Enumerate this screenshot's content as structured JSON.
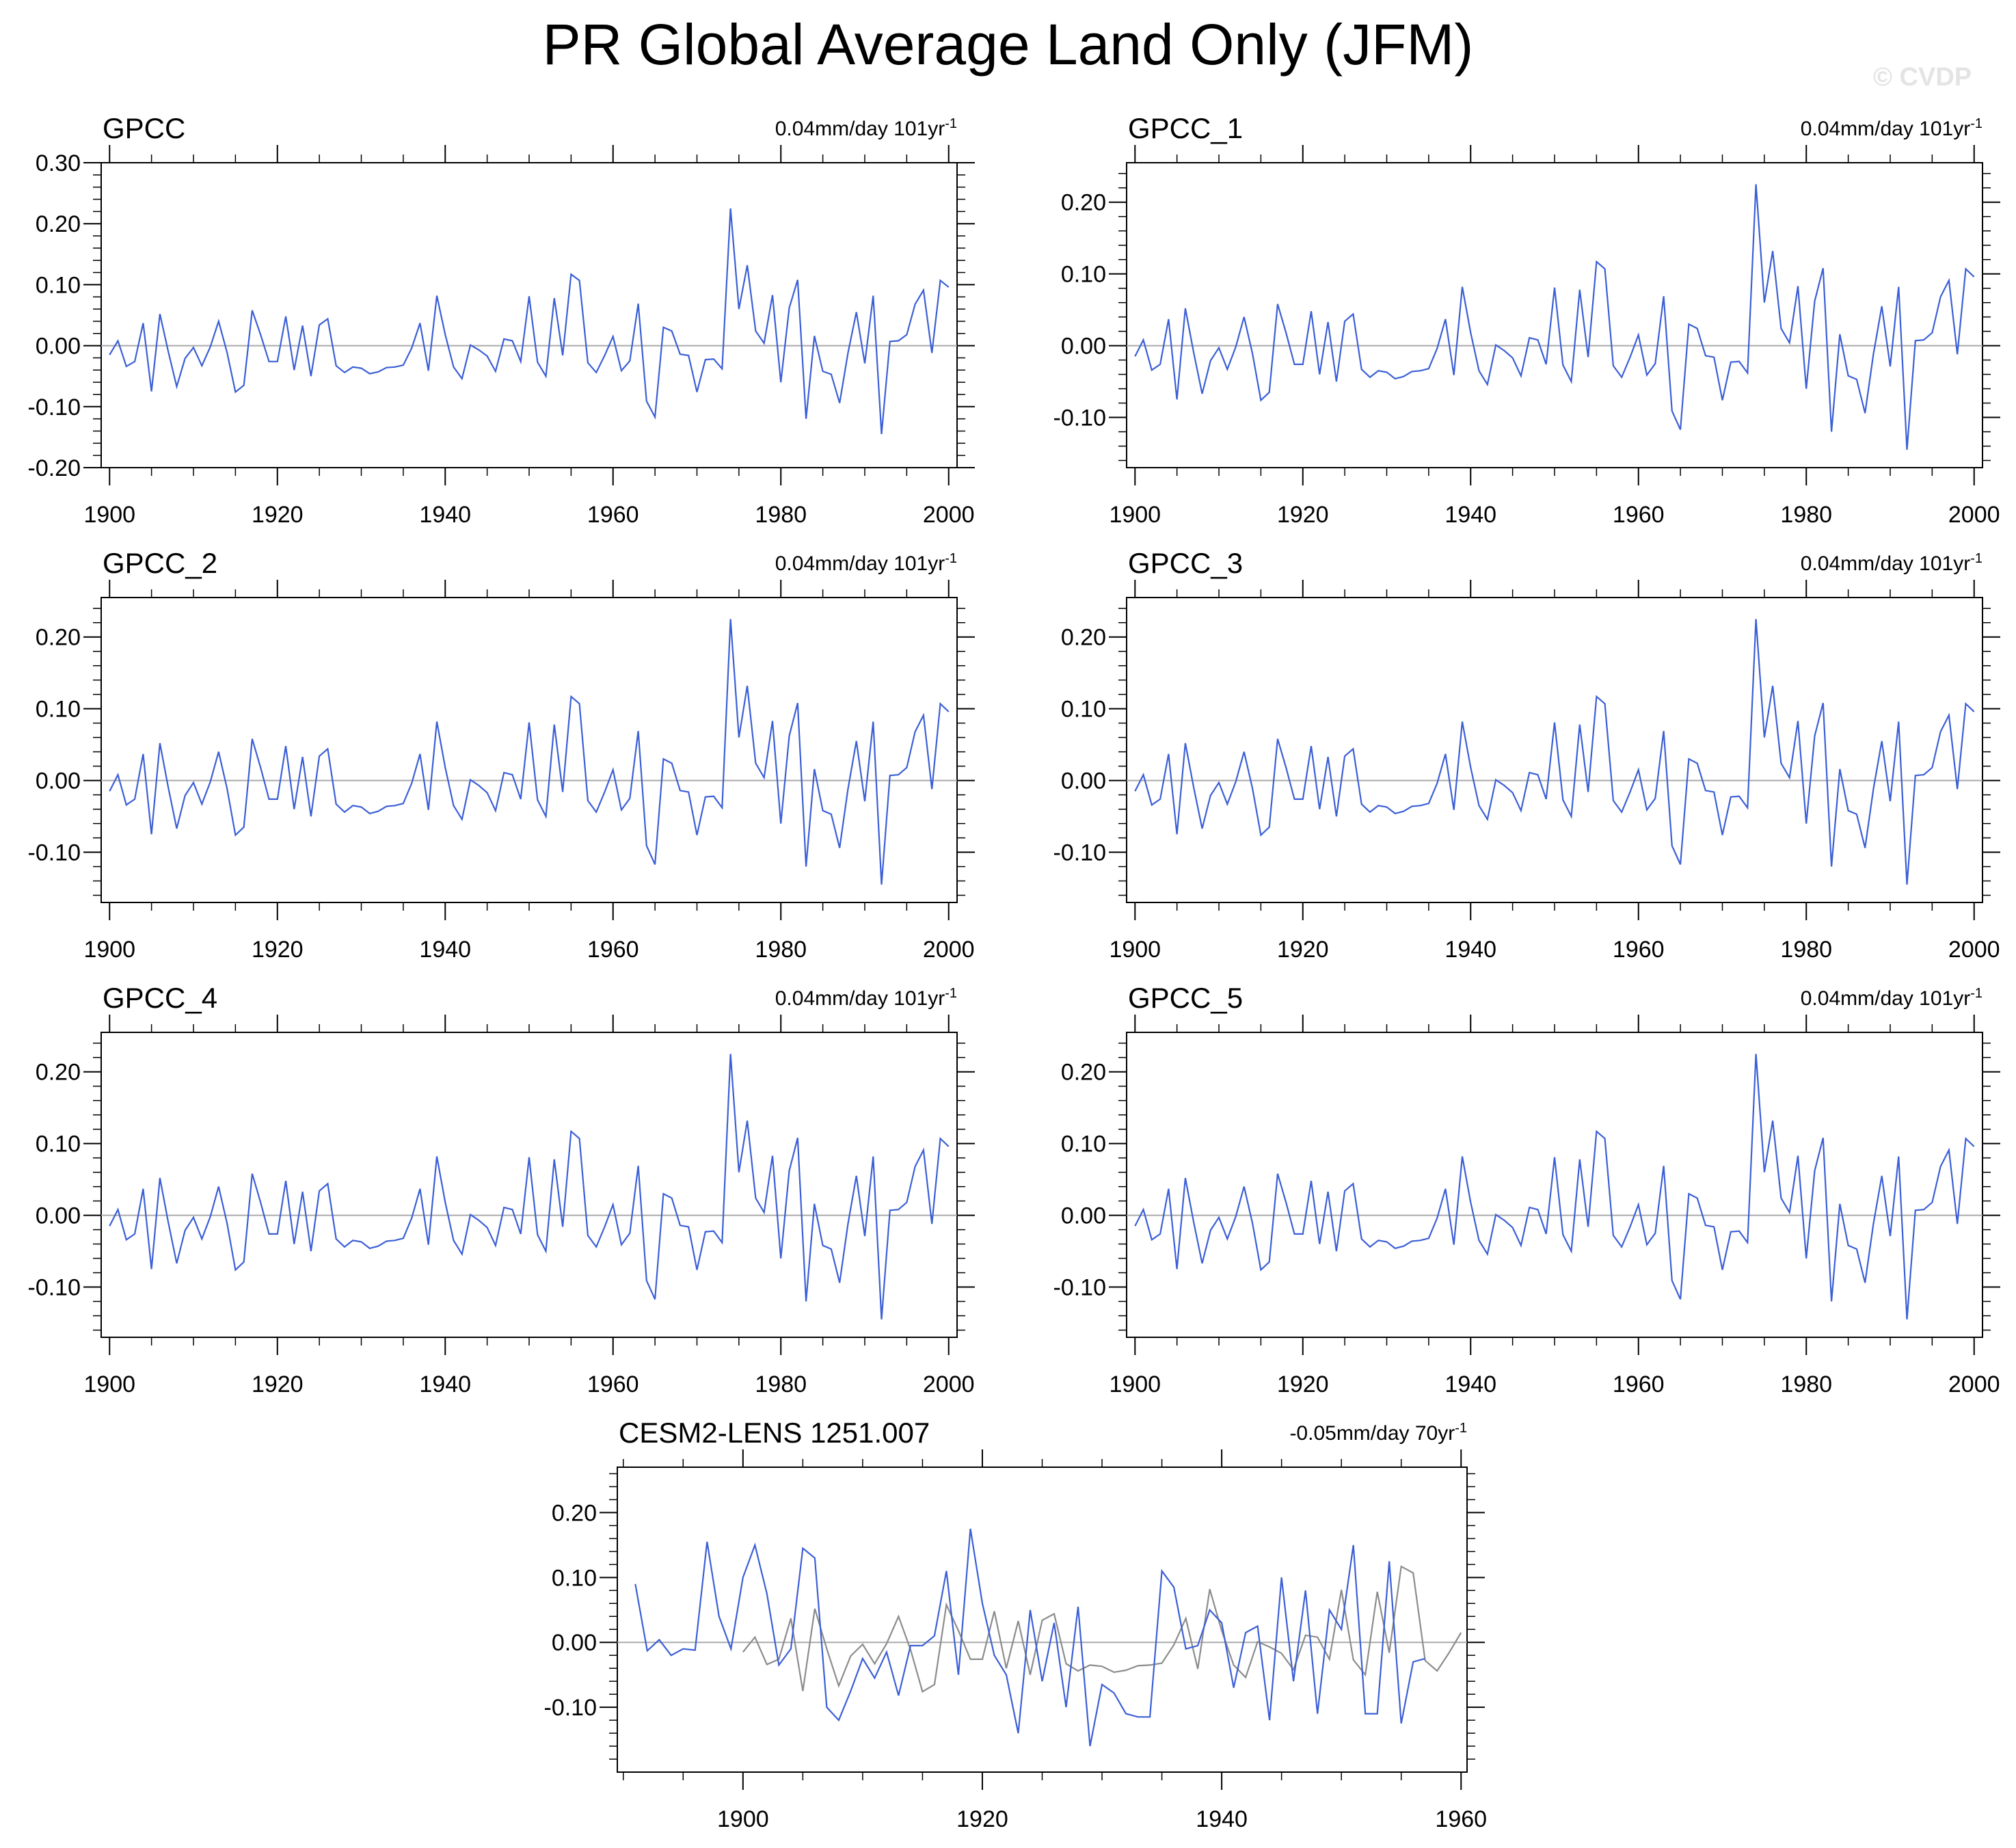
{
  "title": "PR Global Average Land Only (JFM)",
  "watermark": "© CVDP",
  "colors": {
    "series": "#3b5fd6",
    "comparison": "#8c8c8c",
    "zero_line": "#aaaaaa",
    "axis": "#000000"
  },
  "chart_data": [
    {
      "type": "line",
      "title": "GPCC",
      "trend_value": "0.04mm/day",
      "trend_period": "101yr",
      "trend_exp": "-1",
      "xlim": [
        1899,
        2001
      ],
      "ylim": [
        -0.2,
        0.3
      ],
      "xticks": [
        1900,
        1920,
        1940,
        1960,
        1980,
        2000
      ],
      "yticks": [
        -0.2,
        -0.1,
        0.0,
        0.1,
        0.2,
        0.3
      ],
      "ytick_labels": [
        "-0.20",
        "-0.10",
        "0.00",
        "0.10",
        "0.20",
        "0.30"
      ],
      "series": [
        {
          "name": "GPCC",
          "color": "#3b5fd6",
          "x_start": 1900,
          "values": [
            -0.015,
            0.008,
            -0.034,
            -0.026,
            0.037,
            -0.075,
            0.052,
            -0.01,
            -0.067,
            -0.021,
            -0.003,
            -0.033,
            -0.002,
            0.04,
            -0.011,
            -0.076,
            -0.065,
            0.058,
            0.018,
            -0.026,
            -0.026,
            0.048,
            -0.04,
            0.033,
            -0.05,
            0.034,
            0.044,
            -0.033,
            -0.044,
            -0.035,
            -0.037,
            -0.046,
            -0.043,
            -0.036,
            -0.035,
            -0.032,
            -0.004,
            0.037,
            -0.041,
            0.082,
            0.018,
            -0.035,
            -0.054,
            0.001,
            -0.007,
            -0.017,
            -0.042,
            0.011,
            0.008,
            -0.026,
            0.081,
            -0.027,
            -0.05,
            0.078,
            -0.016,
            0.117,
            0.107,
            -0.028,
            -0.044,
            -0.016,
            0.015,
            -0.041,
            -0.025,
            0.069,
            -0.091,
            -0.117,
            0.03,
            0.024,
            -0.014,
            -0.016,
            -0.076,
            -0.023,
            -0.022,
            -0.038,
            0.225,
            0.06,
            0.132,
            0.024,
            0.004,
            0.083,
            -0.06,
            0.062,
            0.108,
            -0.12,
            0.016,
            -0.042,
            -0.047,
            -0.094,
            -0.012,
            0.055,
            -0.029,
            0.082,
            -0.145,
            0.007,
            0.008,
            0.018,
            0.068,
            0.091,
            -0.012,
            0.107,
            0.096
          ]
        }
      ]
    },
    {
      "type": "line",
      "title": "GPCC_1",
      "trend_value": "0.04mm/day",
      "trend_period": "101yr",
      "trend_exp": "-1",
      "xlim": [
        1899,
        2001
      ],
      "ylim": [
        -0.17,
        0.255
      ],
      "xticks": [
        1900,
        1920,
        1940,
        1960,
        1980,
        2000
      ],
      "yticks": [
        -0.1,
        0.0,
        0.1,
        0.2
      ],
      "ytick_labels": [
        "-0.10",
        "0.00",
        "0.10",
        "0.20"
      ],
      "series": [
        {
          "name": "GPCC_1",
          "color": "#3b5fd6",
          "x_start": 1900,
          "values": [
            -0.015,
            0.008,
            -0.034,
            -0.026,
            0.037,
            -0.075,
            0.052,
            -0.01,
            -0.067,
            -0.021,
            -0.003,
            -0.033,
            -0.002,
            0.04,
            -0.011,
            -0.076,
            -0.065,
            0.058,
            0.018,
            -0.026,
            -0.026,
            0.048,
            -0.04,
            0.033,
            -0.05,
            0.034,
            0.044,
            -0.033,
            -0.044,
            -0.035,
            -0.037,
            -0.046,
            -0.043,
            -0.036,
            -0.035,
            -0.032,
            -0.004,
            0.037,
            -0.041,
            0.082,
            0.018,
            -0.035,
            -0.054,
            0.001,
            -0.007,
            -0.017,
            -0.042,
            0.011,
            0.008,
            -0.026,
            0.081,
            -0.027,
            -0.05,
            0.078,
            -0.016,
            0.117,
            0.107,
            -0.028,
            -0.044,
            -0.016,
            0.015,
            -0.041,
            -0.025,
            0.069,
            -0.091,
            -0.117,
            0.03,
            0.024,
            -0.014,
            -0.016,
            -0.076,
            -0.023,
            -0.022,
            -0.038,
            0.225,
            0.06,
            0.132,
            0.024,
            0.004,
            0.083,
            -0.06,
            0.062,
            0.108,
            -0.12,
            0.016,
            -0.042,
            -0.047,
            -0.094,
            -0.012,
            0.055,
            -0.029,
            0.082,
            -0.145,
            0.007,
            0.008,
            0.018,
            0.068,
            0.091,
            -0.012,
            0.107,
            0.096
          ]
        }
      ]
    },
    {
      "type": "line",
      "title": "GPCC_2",
      "trend_value": "0.04mm/day",
      "trend_period": "101yr",
      "trend_exp": "-1",
      "xlim": [
        1899,
        2001
      ],
      "ylim": [
        -0.17,
        0.255
      ],
      "xticks": [
        1900,
        1920,
        1940,
        1960,
        1980,
        2000
      ],
      "yticks": [
        -0.1,
        0.0,
        0.1,
        0.2
      ],
      "ytick_labels": [
        "-0.10",
        "0.00",
        "0.10",
        "0.20"
      ],
      "series": [
        {
          "name": "GPCC_2",
          "color": "#3b5fd6",
          "x_start": 1900,
          "values": [
            -0.015,
            0.008,
            -0.034,
            -0.026,
            0.037,
            -0.075,
            0.052,
            -0.01,
            -0.067,
            -0.021,
            -0.003,
            -0.033,
            -0.002,
            0.04,
            -0.011,
            -0.076,
            -0.065,
            0.058,
            0.018,
            -0.026,
            -0.026,
            0.048,
            -0.04,
            0.033,
            -0.05,
            0.034,
            0.044,
            -0.033,
            -0.044,
            -0.035,
            -0.037,
            -0.046,
            -0.043,
            -0.036,
            -0.035,
            -0.032,
            -0.004,
            0.037,
            -0.041,
            0.082,
            0.018,
            -0.035,
            -0.054,
            0.001,
            -0.007,
            -0.017,
            -0.042,
            0.011,
            0.008,
            -0.026,
            0.081,
            -0.027,
            -0.05,
            0.078,
            -0.016,
            0.117,
            0.107,
            -0.028,
            -0.044,
            -0.016,
            0.015,
            -0.041,
            -0.025,
            0.069,
            -0.091,
            -0.117,
            0.03,
            0.024,
            -0.014,
            -0.016,
            -0.076,
            -0.023,
            -0.022,
            -0.038,
            0.225,
            0.06,
            0.132,
            0.024,
            0.004,
            0.083,
            -0.06,
            0.062,
            0.108,
            -0.12,
            0.016,
            -0.042,
            -0.047,
            -0.094,
            -0.012,
            0.055,
            -0.029,
            0.082,
            -0.145,
            0.007,
            0.008,
            0.018,
            0.068,
            0.091,
            -0.012,
            0.107,
            0.096
          ]
        }
      ]
    },
    {
      "type": "line",
      "title": "GPCC_3",
      "trend_value": "0.04mm/day",
      "trend_period": "101yr",
      "trend_exp": "-1",
      "xlim": [
        1899,
        2001
      ],
      "ylim": [
        -0.17,
        0.255
      ],
      "xticks": [
        1900,
        1920,
        1940,
        1960,
        1980,
        2000
      ],
      "yticks": [
        -0.1,
        0.0,
        0.1,
        0.2
      ],
      "ytick_labels": [
        "-0.10",
        "0.00",
        "0.10",
        "0.20"
      ],
      "series": [
        {
          "name": "GPCC_3",
          "color": "#3b5fd6",
          "x_start": 1900,
          "values": [
            -0.015,
            0.008,
            -0.034,
            -0.026,
            0.037,
            -0.075,
            0.052,
            -0.01,
            -0.067,
            -0.021,
            -0.003,
            -0.033,
            -0.002,
            0.04,
            -0.011,
            -0.076,
            -0.065,
            0.058,
            0.018,
            -0.026,
            -0.026,
            0.048,
            -0.04,
            0.033,
            -0.05,
            0.034,
            0.044,
            -0.033,
            -0.044,
            -0.035,
            -0.037,
            -0.046,
            -0.043,
            -0.036,
            -0.035,
            -0.032,
            -0.004,
            0.037,
            -0.041,
            0.082,
            0.018,
            -0.035,
            -0.054,
            0.001,
            -0.007,
            -0.017,
            -0.042,
            0.011,
            0.008,
            -0.026,
            0.081,
            -0.027,
            -0.05,
            0.078,
            -0.016,
            0.117,
            0.107,
            -0.028,
            -0.044,
            -0.016,
            0.015,
            -0.041,
            -0.025,
            0.069,
            -0.091,
            -0.117,
            0.03,
            0.024,
            -0.014,
            -0.016,
            -0.076,
            -0.023,
            -0.022,
            -0.038,
            0.225,
            0.06,
            0.132,
            0.024,
            0.004,
            0.083,
            -0.06,
            0.062,
            0.108,
            -0.12,
            0.016,
            -0.042,
            -0.047,
            -0.094,
            -0.012,
            0.055,
            -0.029,
            0.082,
            -0.145,
            0.007,
            0.008,
            0.018,
            0.068,
            0.091,
            -0.012,
            0.107,
            0.096
          ]
        }
      ]
    },
    {
      "type": "line",
      "title": "GPCC_4",
      "trend_value": "0.04mm/day",
      "trend_period": "101yr",
      "trend_exp": "-1",
      "xlim": [
        1899,
        2001
      ],
      "ylim": [
        -0.17,
        0.255
      ],
      "xticks": [
        1900,
        1920,
        1940,
        1960,
        1980,
        2000
      ],
      "yticks": [
        -0.1,
        0.0,
        0.1,
        0.2
      ],
      "ytick_labels": [
        "-0.10",
        "0.00",
        "0.10",
        "0.20"
      ],
      "series": [
        {
          "name": "GPCC_4",
          "color": "#3b5fd6",
          "x_start": 1900,
          "values": [
            -0.015,
            0.008,
            -0.034,
            -0.026,
            0.037,
            -0.075,
            0.052,
            -0.01,
            -0.067,
            -0.021,
            -0.003,
            -0.033,
            -0.002,
            0.04,
            -0.011,
            -0.076,
            -0.065,
            0.058,
            0.018,
            -0.026,
            -0.026,
            0.048,
            -0.04,
            0.033,
            -0.05,
            0.034,
            0.044,
            -0.033,
            -0.044,
            -0.035,
            -0.037,
            -0.046,
            -0.043,
            -0.036,
            -0.035,
            -0.032,
            -0.004,
            0.037,
            -0.041,
            0.082,
            0.018,
            -0.035,
            -0.054,
            0.001,
            -0.007,
            -0.017,
            -0.042,
            0.011,
            0.008,
            -0.026,
            0.081,
            -0.027,
            -0.05,
            0.078,
            -0.016,
            0.117,
            0.107,
            -0.028,
            -0.044,
            -0.016,
            0.015,
            -0.041,
            -0.025,
            0.069,
            -0.091,
            -0.117,
            0.03,
            0.024,
            -0.014,
            -0.016,
            -0.076,
            -0.023,
            -0.022,
            -0.038,
            0.225,
            0.06,
            0.132,
            0.024,
            0.004,
            0.083,
            -0.06,
            0.062,
            0.108,
            -0.12,
            0.016,
            -0.042,
            -0.047,
            -0.094,
            -0.012,
            0.055,
            -0.029,
            0.082,
            -0.145,
            0.007,
            0.008,
            0.018,
            0.068,
            0.091,
            -0.012,
            0.107,
            0.096
          ]
        }
      ]
    },
    {
      "type": "line",
      "title": "GPCC_5",
      "trend_value": "0.04mm/day",
      "trend_period": "101yr",
      "trend_exp": "-1",
      "xlim": [
        1899,
        2001
      ],
      "ylim": [
        -0.17,
        0.255
      ],
      "xticks": [
        1900,
        1920,
        1940,
        1960,
        1980,
        2000
      ],
      "yticks": [
        -0.1,
        0.0,
        0.1,
        0.2
      ],
      "ytick_labels": [
        "-0.10",
        "0.00",
        "0.10",
        "0.20"
      ],
      "series": [
        {
          "name": "GPCC_5",
          "color": "#3b5fd6",
          "x_start": 1900,
          "values": [
            -0.015,
            0.008,
            -0.034,
            -0.026,
            0.037,
            -0.075,
            0.052,
            -0.01,
            -0.067,
            -0.021,
            -0.003,
            -0.033,
            -0.002,
            0.04,
            -0.011,
            -0.076,
            -0.065,
            0.058,
            0.018,
            -0.026,
            -0.026,
            0.048,
            -0.04,
            0.033,
            -0.05,
            0.034,
            0.044,
            -0.033,
            -0.044,
            -0.035,
            -0.037,
            -0.046,
            -0.043,
            -0.036,
            -0.035,
            -0.032,
            -0.004,
            0.037,
            -0.041,
            0.082,
            0.018,
            -0.035,
            -0.054,
            0.001,
            -0.007,
            -0.017,
            -0.042,
            0.011,
            0.008,
            -0.026,
            0.081,
            -0.027,
            -0.05,
            0.078,
            -0.016,
            0.117,
            0.107,
            -0.028,
            -0.044,
            -0.016,
            0.015,
            -0.041,
            -0.025,
            0.069,
            -0.091,
            -0.117,
            0.03,
            0.024,
            -0.014,
            -0.016,
            -0.076,
            -0.023,
            -0.022,
            -0.038,
            0.225,
            0.06,
            0.132,
            0.024,
            0.004,
            0.083,
            -0.06,
            0.062,
            0.108,
            -0.12,
            0.016,
            -0.042,
            -0.047,
            -0.094,
            -0.012,
            0.055,
            -0.029,
            0.082,
            -0.145,
            0.007,
            0.008,
            0.018,
            0.068,
            0.091,
            -0.012,
            0.107,
            0.096
          ]
        }
      ]
    },
    {
      "type": "line",
      "title": "CESM2-LENS 1251.007",
      "trend_value": "-0.05mm/day",
      "trend_period": "70yr",
      "trend_exp": "-1",
      "xlim": [
        1889.5,
        1960.5
      ],
      "ylim": [
        -0.2,
        0.27
      ],
      "xticks": [
        1900,
        1920,
        1940,
        1960
      ],
      "yticks": [
        -0.1,
        0.0,
        0.1,
        0.2
      ],
      "ytick_labels": [
        "-0.10",
        "0.00",
        "0.10",
        "0.20"
      ],
      "series": [
        {
          "name": "CESM2-LENS 1251.007",
          "color": "#3b5fd6",
          "x_start": 1891,
          "values": [
            0.09,
            -0.013,
            0.004,
            -0.02,
            -0.01,
            -0.012,
            0.155,
            0.04,
            -0.01,
            0.1,
            0.15,
            0.075,
            -0.035,
            -0.01,
            0.145,
            0.13,
            -0.1,
            -0.12,
            -0.075,
            -0.025,
            -0.055,
            -0.015,
            -0.082,
            -0.005,
            -0.005,
            0.01,
            0.11,
            -0.05,
            0.175,
            0.06,
            -0.02,
            -0.05,
            -0.14,
            0.05,
            -0.06,
            0.03,
            -0.1,
            0.055,
            -0.16,
            -0.065,
            -0.078,
            -0.11,
            -0.115,
            -0.115,
            0.11,
            0.085,
            -0.01,
            -0.005,
            0.05,
            0.03,
            -0.07,
            0.015,
            0.025,
            -0.12,
            0.1,
            -0.06,
            0.08,
            -0.11,
            0.05,
            0.02,
            0.15,
            -0.11,
            -0.11,
            0.125,
            -0.125,
            -0.03,
            -0.025
          ]
        },
        {
          "name": "GPCC",
          "color": "#8c8c8c",
          "x_start": 1900,
          "values": [
            -0.015,
            0.008,
            -0.034,
            -0.026,
            0.037,
            -0.075,
            0.052,
            -0.01,
            -0.067,
            -0.021,
            -0.003,
            -0.033,
            -0.002,
            0.04,
            -0.011,
            -0.076,
            -0.065,
            0.058,
            0.018,
            -0.026,
            -0.026,
            0.048,
            -0.04,
            0.033,
            -0.05,
            0.034,
            0.044,
            -0.033,
            -0.044,
            -0.035,
            -0.037,
            -0.046,
            -0.043,
            -0.036,
            -0.035,
            -0.032,
            -0.004,
            0.037,
            -0.041,
            0.082,
            0.018,
            -0.035,
            -0.054,
            0.001,
            -0.007,
            -0.017,
            -0.042,
            0.011,
            0.008,
            -0.026,
            0.081,
            -0.027,
            -0.05,
            0.078,
            -0.016,
            0.117,
            0.107,
            -0.028,
            -0.044,
            -0.016,
            0.015
          ]
        }
      ]
    }
  ]
}
